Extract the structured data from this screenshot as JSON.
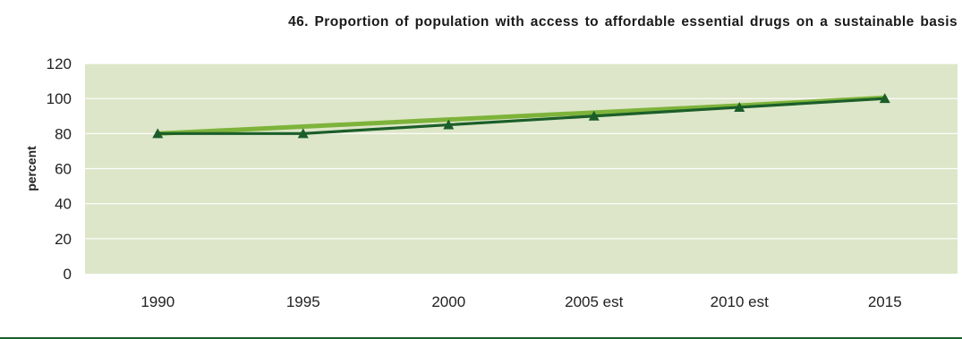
{
  "chart_data": {
    "type": "line",
    "title": "46. Proportion of population with access to affordable essential drugs on a sustainable basis",
    "xlabel": "",
    "ylabel": "percent",
    "categories": [
      "1990",
      "1995",
      "2000",
      "2005 est",
      "2010 est",
      "2015"
    ],
    "yticks": [
      "0",
      "20",
      "40",
      "60",
      "80",
      "100",
      "120"
    ],
    "ylim": [
      0,
      120
    ],
    "grid": true,
    "legend": "none",
    "series": [
      {
        "values": [
          80,
          84,
          88,
          92,
          96,
          100.5
        ],
        "color": "#7db33a",
        "marker": "none"
      },
      {
        "values": [
          80,
          80,
          85,
          90,
          95,
          100
        ],
        "color": "#1b5e2a",
        "marker": "triangle"
      }
    ],
    "plot_background": "#dde6c8",
    "gridline_color": "#ffffff"
  }
}
